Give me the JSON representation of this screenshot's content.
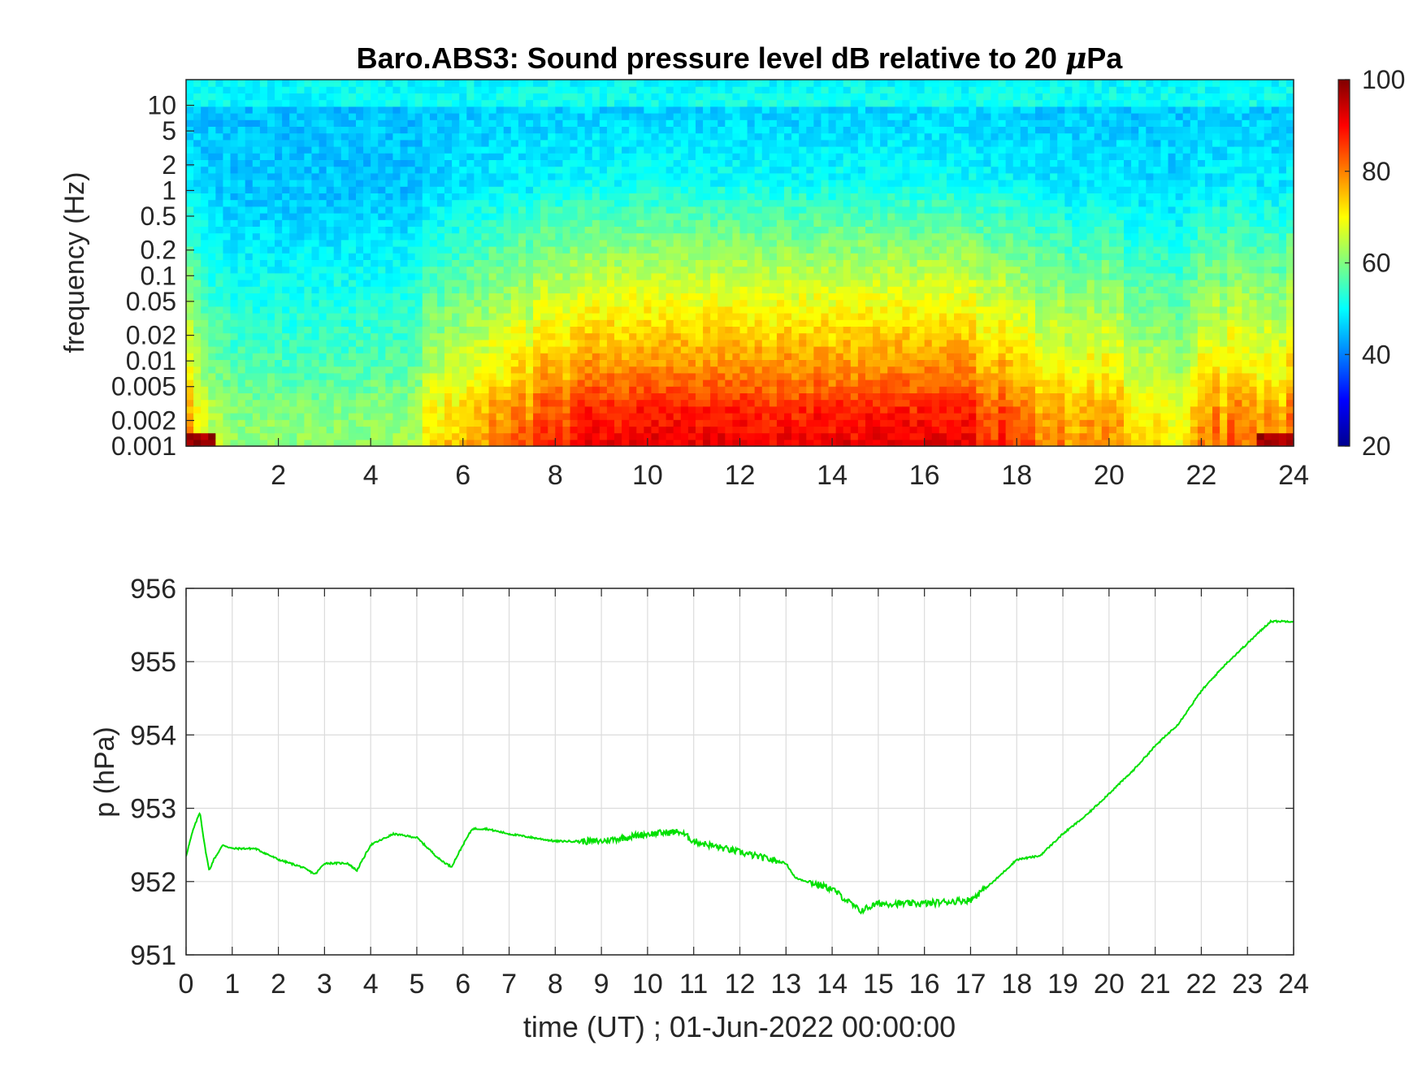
{
  "chart_data": [
    {
      "type": "heatmap",
      "title_prefix": "Baro.ABS3: Sound pressure level dB relative to 20 ",
      "title_mu": "μ",
      "title_suffix": "Pa",
      "ylabel": "frequency (Hz)",
      "xlabel": "",
      "x_ticks": [
        "2",
        "4",
        "6",
        "8",
        "10",
        "12",
        "14",
        "16",
        "18",
        "20",
        "22",
        "24"
      ],
      "x_tick_values": [
        2,
        4,
        6,
        8,
        10,
        12,
        14,
        16,
        18,
        20,
        22,
        24
      ],
      "xlim": [
        0,
        24
      ],
      "y_ticks": [
        "0.001",
        "0.002",
        "0.005",
        "0.01",
        "0.02",
        "0.05",
        "0.1",
        "0.2",
        "0.5",
        "1",
        "2",
        "5",
        "10"
      ],
      "y_tick_values": [
        0.001,
        0.002,
        0.005,
        0.01,
        0.02,
        0.05,
        0.1,
        0.2,
        0.5,
        1,
        2,
        5,
        10
      ],
      "ylim": [
        0.001,
        20
      ],
      "y_scale": "log",
      "colormap": "jet",
      "colorbar_ticks": [
        "20",
        "40",
        "60",
        "80",
        "100"
      ],
      "colorbar_values": [
        20,
        40,
        60,
        80,
        100
      ],
      "clim": [
        20,
        100
      ],
      "activity_profile_hours": [
        0,
        0.5,
        1,
        2,
        3,
        4,
        5,
        5.2,
        6,
        7,
        8,
        9,
        10,
        11,
        12,
        13,
        14,
        15,
        16,
        17,
        18,
        19,
        20,
        21,
        21.5,
        22,
        23,
        23.5,
        24
      ],
      "activity_profile_level": [
        0.55,
        0.2,
        0.1,
        0.08,
        0.08,
        0.1,
        0.12,
        0.3,
        0.45,
        0.55,
        0.72,
        0.9,
        0.95,
        0.95,
        0.92,
        0.9,
        0.9,
        0.92,
        0.95,
        0.9,
        0.6,
        0.55,
        0.5,
        0.35,
        0.3,
        0.55,
        0.6,
        0.5,
        0.6
      ]
    },
    {
      "type": "line",
      "title": "",
      "xlabel": "time (UT) ; 01-Jun-2022 00:00:00",
      "ylabel": "p (hPa)",
      "x_ticks": [
        "0",
        "1",
        "2",
        "3",
        "4",
        "5",
        "6",
        "7",
        "8",
        "9",
        "10",
        "11",
        "12",
        "13",
        "14",
        "15",
        "16",
        "17",
        "18",
        "19",
        "20",
        "21",
        "22",
        "23",
        "24"
      ],
      "xlim": [
        0,
        24
      ],
      "y_ticks": [
        "951",
        "952",
        "953",
        "954",
        "955",
        "956"
      ],
      "ylim": [
        951,
        956
      ],
      "grid": true,
      "line_color": "#00e000",
      "series": [
        {
          "x": [
            0,
            0.15,
            0.3,
            0.4,
            0.5,
            0.6,
            0.8,
            1.0,
            1.5,
            2.0,
            2.5,
            2.8,
            3.0,
            3.5,
            3.7,
            4.0,
            4.5,
            5.0,
            5.5,
            5.75,
            6.0,
            6.2,
            6.5,
            7.0,
            8.0,
            9.0,
            10.0,
            10.7,
            11.0,
            12.0,
            13.0,
            13.2,
            14.0,
            14.6,
            15.0,
            16.0,
            17.0,
            17.5,
            18.0,
            18.5,
            19.0,
            19.5,
            20.0,
            20.5,
            21.0,
            21.5,
            22.0,
            22.5,
            23.0,
            23.5,
            23.8,
            24.0
          ],
          "y": [
            952.35,
            952.7,
            952.95,
            952.5,
            952.15,
            952.3,
            952.5,
            952.45,
            952.45,
            952.3,
            952.2,
            952.1,
            952.25,
            952.25,
            952.15,
            952.5,
            952.65,
            952.6,
            952.3,
            952.2,
            952.5,
            952.72,
            952.72,
            952.65,
            952.55,
            952.55,
            952.65,
            952.68,
            952.55,
            952.4,
            952.25,
            952.05,
            951.9,
            951.6,
            951.7,
            951.7,
            951.75,
            952.0,
            952.3,
            952.35,
            952.65,
            952.9,
            953.2,
            953.5,
            953.85,
            954.15,
            954.6,
            954.95,
            955.25,
            955.55,
            955.55,
            955.55
          ]
        }
      ]
    }
  ]
}
